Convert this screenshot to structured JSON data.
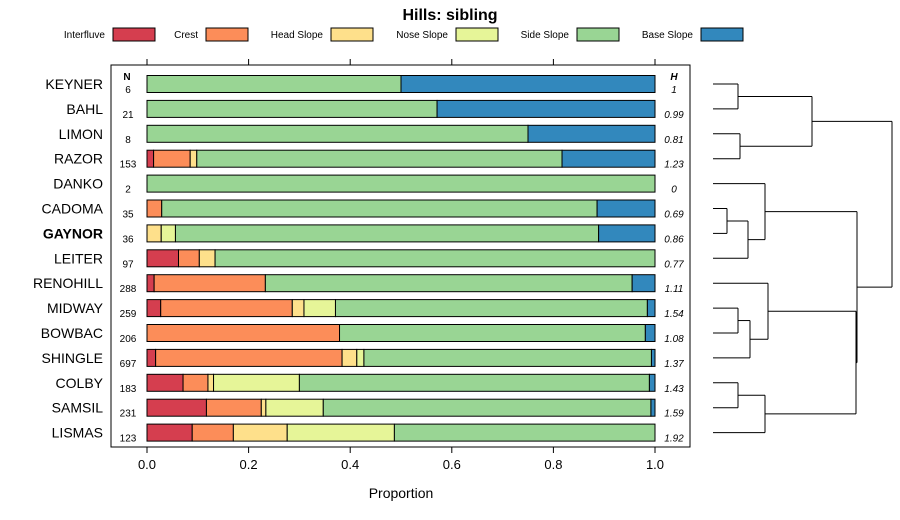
{
  "chart_data": {
    "type": "bar",
    "stacked": true,
    "orientation": "horizontal",
    "title": "Hills: sibling",
    "xlabel": "Proportion",
    "ylabel": "",
    "xlim": [
      0,
      1
    ],
    "xticks": [
      "0.0",
      "0.2",
      "0.4",
      "0.6",
      "0.8",
      "1.0"
    ],
    "n_header": "N",
    "h_header": "H",
    "legend_placement": "top",
    "highlight_category": "GAYNOR",
    "series": [
      {
        "name": "Interfluve",
        "color": "#d53e4f"
      },
      {
        "name": "Crest",
        "color": "#fc8d59"
      },
      {
        "name": "Head Slope",
        "color": "#fee08b"
      },
      {
        "name": "Nose Slope",
        "color": "#e6f598"
      },
      {
        "name": "Side Slope",
        "color": "#99d594"
      },
      {
        "name": "Base Slope",
        "color": "#3288bd"
      }
    ],
    "rows": [
      {
        "label": "KEYNER",
        "n": "6",
        "h": "1",
        "values": [
          0,
          0,
          0,
          0,
          0.5,
          0.5
        ]
      },
      {
        "label": "BAHL",
        "n": "21",
        "h": "0.99",
        "values": [
          0,
          0,
          0,
          0,
          0.571,
          0.429
        ]
      },
      {
        "label": "LIMON",
        "n": "8",
        "h": "0.81",
        "values": [
          0,
          0,
          0,
          0,
          0.75,
          0.25
        ]
      },
      {
        "label": "RAZOR",
        "n": "153",
        "h": "1.23",
        "values": [
          0.013,
          0.072,
          0.013,
          0,
          0.719,
          0.183
        ]
      },
      {
        "label": "DANKO",
        "n": "2",
        "h": "0",
        "values": [
          0,
          0,
          0,
          0,
          1.0,
          0
        ]
      },
      {
        "label": "CADOMA",
        "n": "35",
        "h": "0.69",
        "values": [
          0,
          0.029,
          0,
          0,
          0.857,
          0.114
        ]
      },
      {
        "label": "GAYNOR",
        "n": "36",
        "h": "0.86",
        "values": [
          0,
          0,
          0.028,
          0.028,
          0.833,
          0.111
        ]
      },
      {
        "label": "LEITER",
        "n": "97",
        "h": "0.77",
        "values": [
          0.062,
          0.041,
          0.031,
          0,
          0.866,
          0
        ]
      },
      {
        "label": "RENOHILL",
        "n": "288",
        "h": "1.11",
        "values": [
          0.014,
          0.219,
          0,
          0,
          0.722,
          0.045
        ]
      },
      {
        "label": "MIDWAY",
        "n": "259",
        "h": "1.54",
        "values": [
          0.027,
          0.259,
          0.023,
          0.062,
          0.614,
          0.015
        ]
      },
      {
        "label": "BOWBAC",
        "n": "206",
        "h": "1.08",
        "values": [
          0,
          0.379,
          0,
          0,
          0.602,
          0.019
        ]
      },
      {
        "label": "SHINGLE",
        "n": "697",
        "h": "1.37",
        "values": [
          0.017,
          0.367,
          0.029,
          0.014,
          0.566,
          0.007
        ]
      },
      {
        "label": "COLBY",
        "n": "183",
        "h": "1.43",
        "values": [
          0.071,
          0.049,
          0.011,
          0.169,
          0.689,
          0.011
        ]
      },
      {
        "label": "SAMSIL",
        "n": "231",
        "h": "1.59",
        "values": [
          0.117,
          0.108,
          0.009,
          0.113,
          0.645,
          0.008
        ]
      },
      {
        "label": "LISMAS",
        "n": "123",
        "h": "1.92",
        "values": [
          0.089,
          0.081,
          0.106,
          0.211,
          0.513,
          0
        ]
      }
    ]
  }
}
